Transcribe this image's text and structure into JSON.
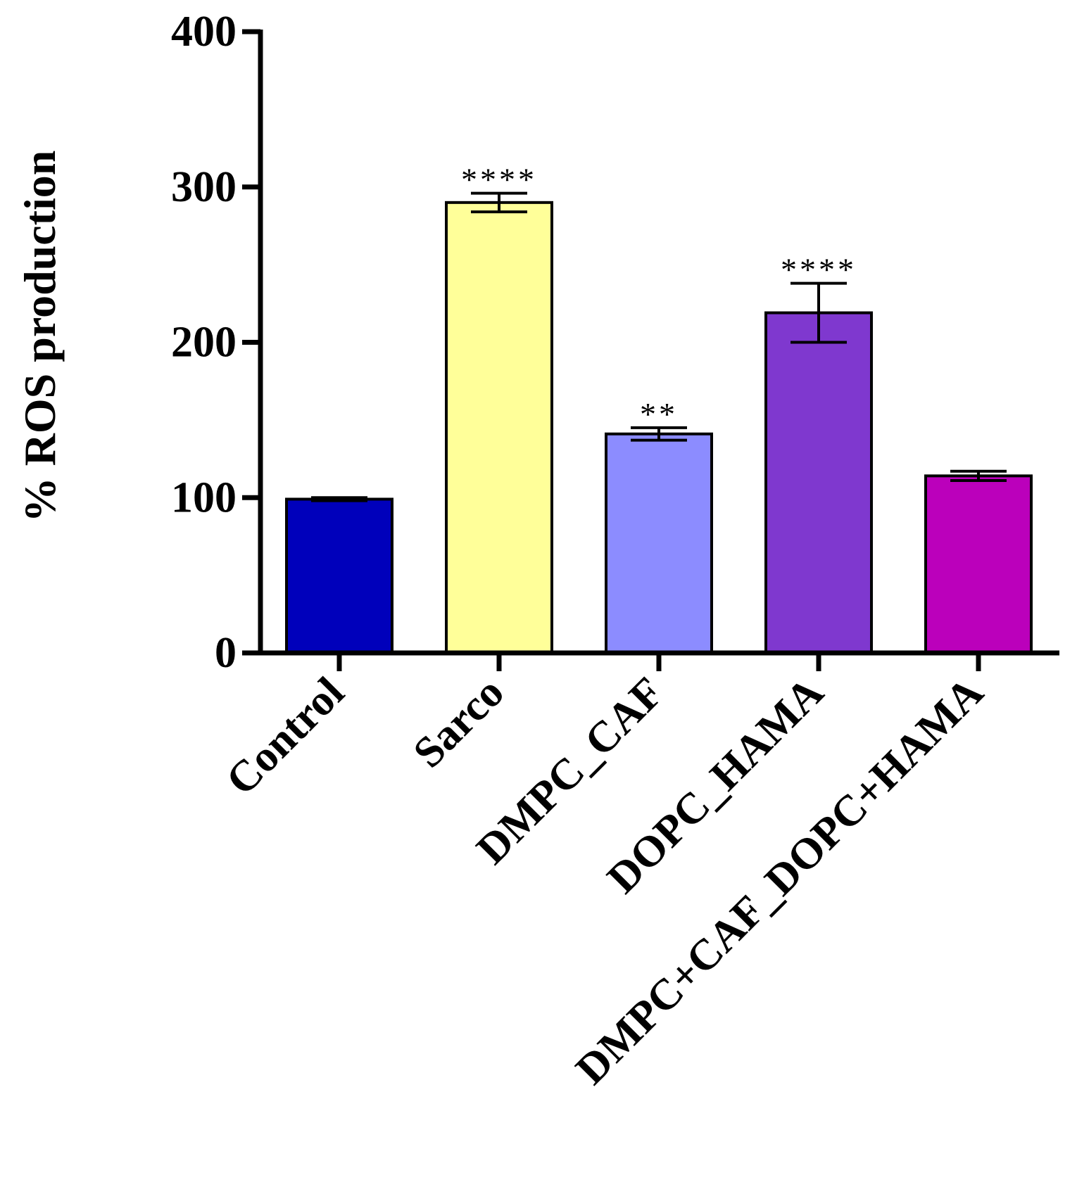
{
  "chart_data": {
    "type": "bar",
    "title": "",
    "xlabel": "",
    "ylabel": "% ROS production",
    "ylim": [
      0,
      400
    ],
    "yticks": [
      0,
      100,
      200,
      300,
      400
    ],
    "grid": false,
    "categories": [
      "Control",
      "Sarco",
      "DMPC_CAF",
      "DOPC_HAMA",
      "DMPC+CAF_DOPC+HAMA"
    ],
    "values": [
      99,
      290,
      141,
      219,
      114
    ],
    "errors": [
      1,
      6,
      4,
      19,
      3
    ],
    "significance": [
      "",
      "****",
      "**",
      "****",
      ""
    ],
    "colors": [
      "#0000BB",
      "#FFFF99",
      "#8C8CFF",
      "#7F38CF",
      "#BB00BB"
    ]
  }
}
